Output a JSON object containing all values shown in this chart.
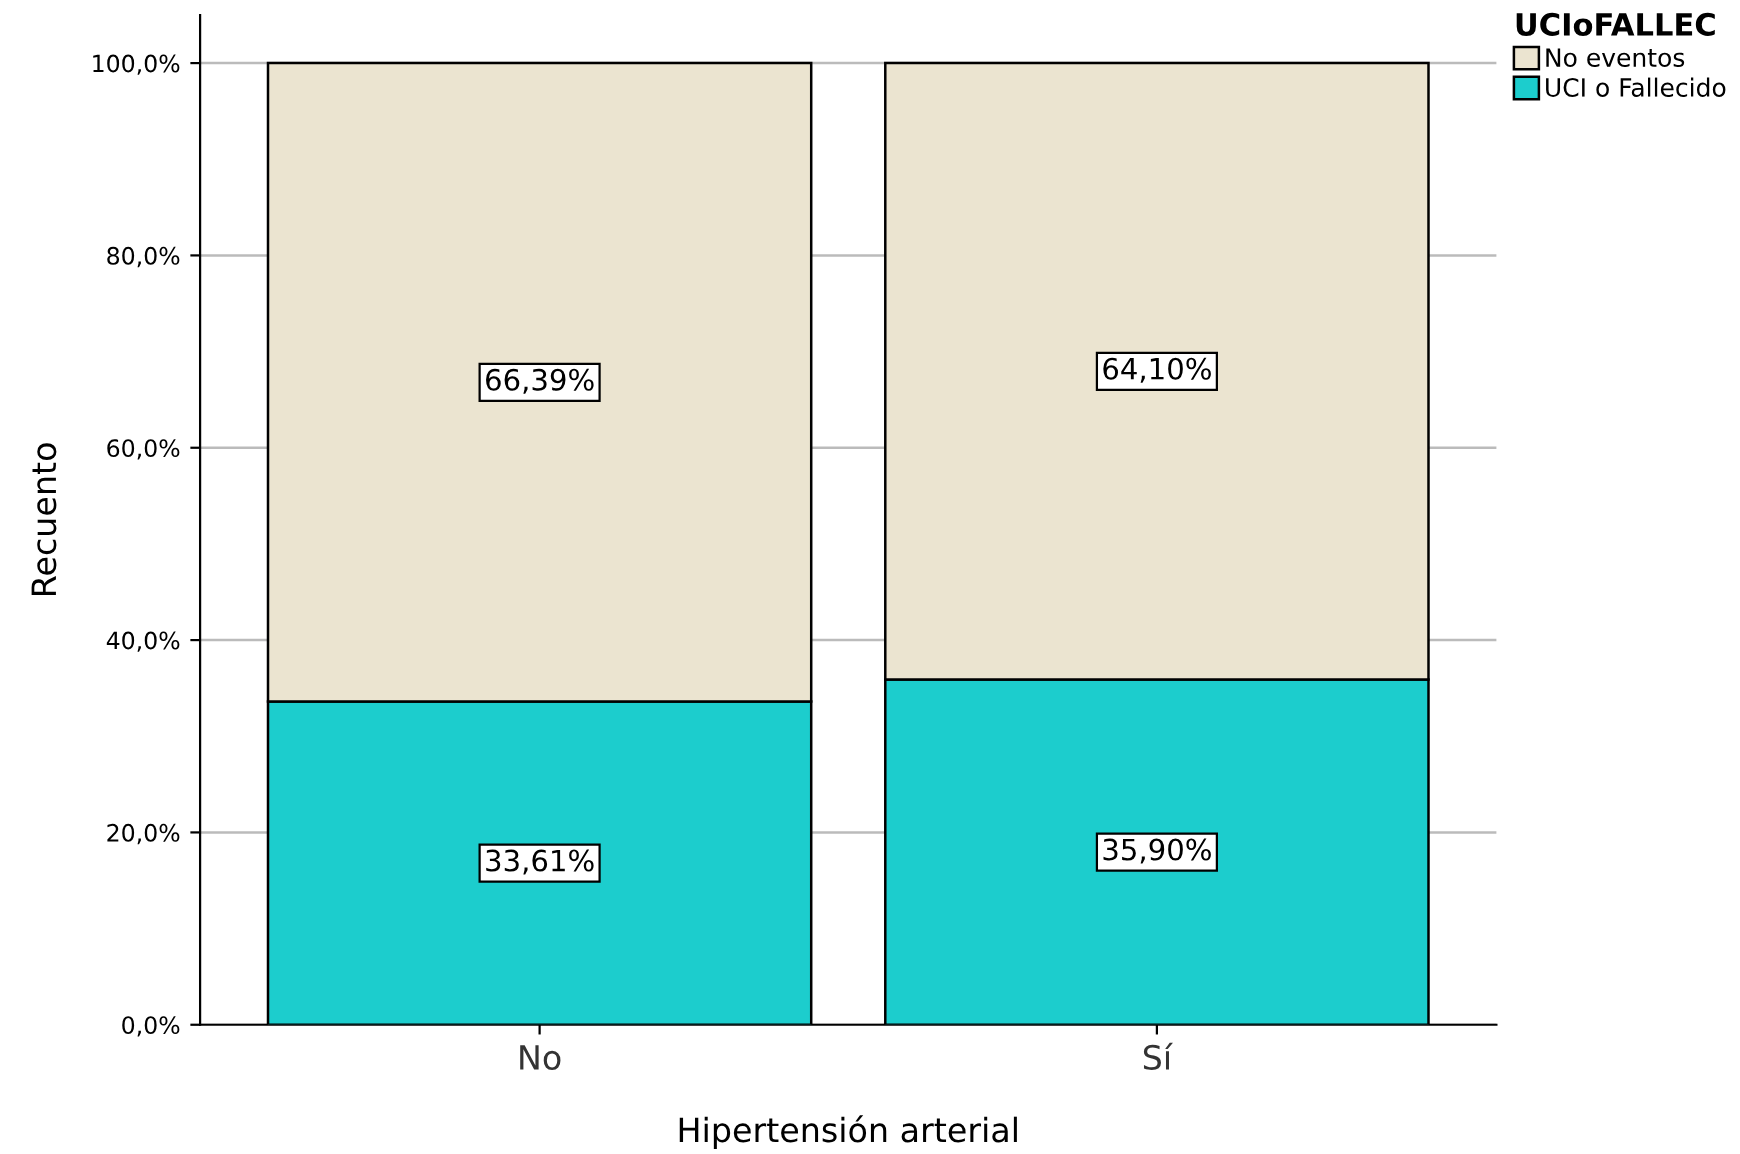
{
  "chart_data": {
    "type": "bar",
    "stacked": true,
    "xlabel": "Hipertensión arterial",
    "ylabel": "Recuento",
    "legend_title": "UCIoFALLEC",
    "categories": [
      "No",
      "Sí"
    ],
    "series": [
      {
        "name": "UCI o Fallecido",
        "color": "#1ccdcd",
        "values": [
          33.61,
          35.9
        ],
        "value_labels": [
          "33,61%",
          "35,90%"
        ]
      },
      {
        "name": "No eventos",
        "color": "#ebe4d0",
        "values": [
          66.39,
          64.1
        ],
        "value_labels": [
          "66,39%",
          "64,10%"
        ]
      }
    ],
    "ylim": [
      0,
      105
    ],
    "yticks": [
      {
        "value": 0,
        "label": "0,0%"
      },
      {
        "value": 20,
        "label": "20,0%"
      },
      {
        "value": 40,
        "label": "40,0%"
      },
      {
        "value": 60,
        "label": "60,0%"
      },
      {
        "value": 80,
        "label": "80,0%"
      },
      {
        "value": 100,
        "label": "100,0%"
      }
    ],
    "grid": "y",
    "legend": "top right"
  }
}
